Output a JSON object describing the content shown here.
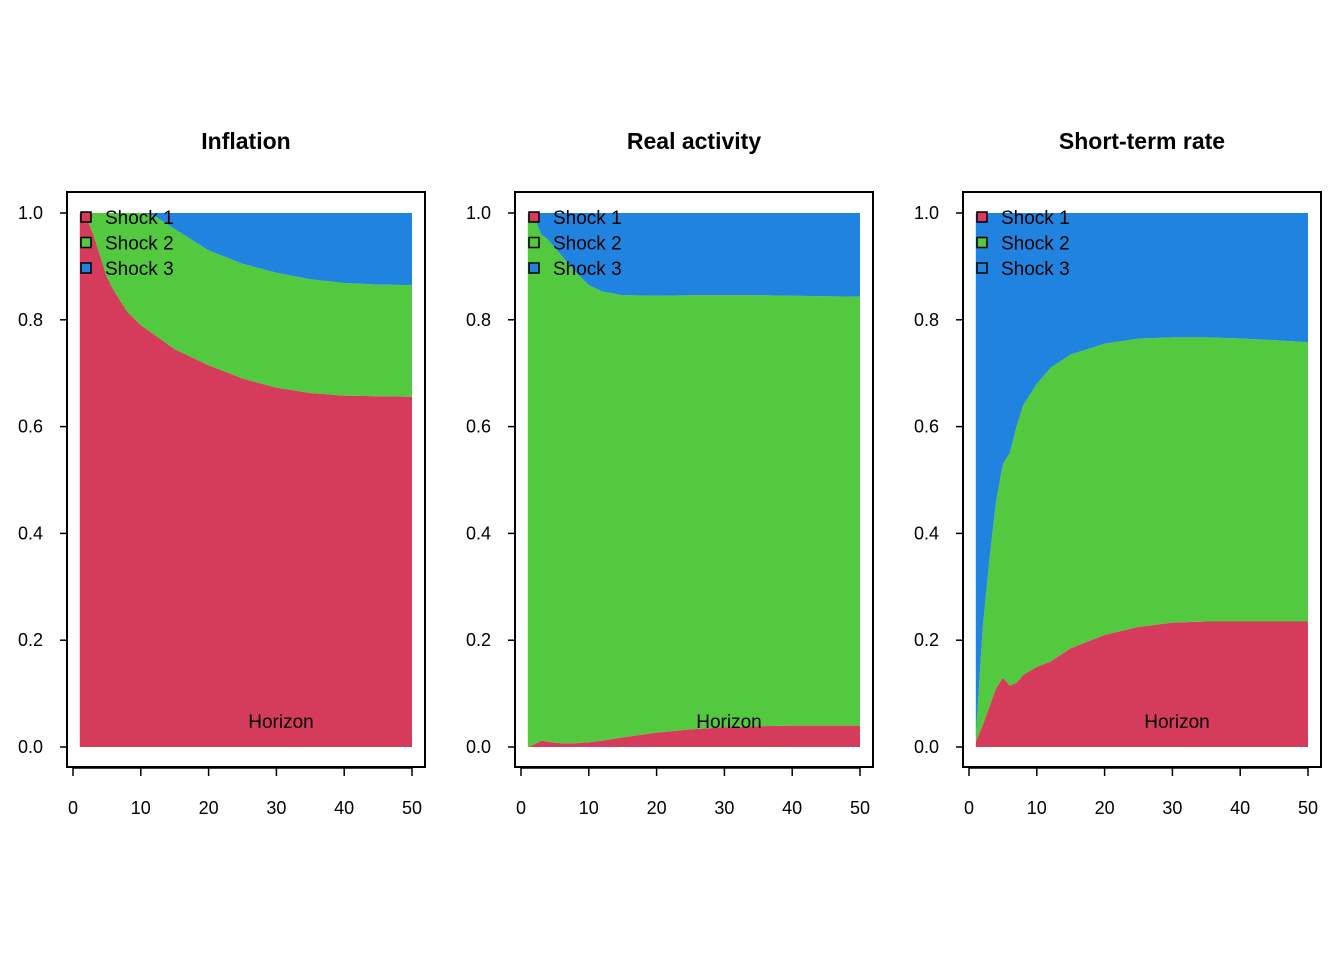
{
  "colors": {
    "Shock 1": "#D53B5A",
    "Shock 2": "#53C93F",
    "Shock 3": "#2183E0"
  },
  "chart_data": [
    {
      "type": "area",
      "stacked": true,
      "title": "Inflation",
      "annotation": "Horizon",
      "legend_position": "top-left",
      "xlim": [
        1,
        50
      ],
      "ylim": [
        0,
        1
      ],
      "xticks": [
        "0",
        "10",
        "20",
        "30",
        "40",
        "50"
      ],
      "yticks": [
        "0.0",
        "0.2",
        "0.4",
        "0.6",
        "0.8",
        "1.0"
      ],
      "x": [
        1,
        2,
        3,
        4,
        5,
        6,
        7,
        8,
        10,
        12,
        15,
        20,
        25,
        30,
        35,
        40,
        45,
        50
      ],
      "series": [
        {
          "name": "Shock 1",
          "values": [
            1.0,
            0.99,
            0.96,
            0.92,
            0.88,
            0.855,
            0.835,
            0.815,
            0.79,
            0.772,
            0.745,
            0.715,
            0.69,
            0.673,
            0.663,
            0.658,
            0.657,
            0.656
          ]
        },
        {
          "name": "Shock 2",
          "values": [
            0,
            0.01,
            0.04,
            0.08,
            0.12,
            0.145,
            0.165,
            0.185,
            0.21,
            0.223,
            0.225,
            0.215,
            0.215,
            0.215,
            0.213,
            0.211,
            0.209,
            0.209
          ]
        },
        {
          "name": "Shock 3",
          "values": [
            0,
            0,
            0,
            0,
            0,
            0,
            0,
            0,
            0,
            0.005,
            0.03,
            0.07,
            0.095,
            0.112,
            0.124,
            0.131,
            0.134,
            0.135
          ]
        }
      ]
    },
    {
      "type": "area",
      "stacked": true,
      "title": "Real activity",
      "annotation": "Horizon",
      "legend_position": "top-left",
      "xlim": [
        1,
        50
      ],
      "ylim": [
        0,
        1
      ],
      "xticks": [
        "0",
        "10",
        "20",
        "30",
        "40",
        "50"
      ],
      "yticks": [
        "0.0",
        "0.2",
        "0.4",
        "0.6",
        "0.8",
        "1.0"
      ],
      "x": [
        1,
        2,
        3,
        4,
        5,
        6,
        7,
        8,
        10,
        12,
        15,
        20,
        25,
        30,
        35,
        40,
        45,
        50
      ],
      "series": [
        {
          "name": "Shock 1",
          "values": [
            0,
            0.005,
            0.012,
            0.01,
            0.008,
            0.007,
            0.007,
            0.007,
            0.009,
            0.012,
            0.018,
            0.027,
            0.033,
            0.037,
            0.039,
            0.04,
            0.04,
            0.04
          ]
        },
        {
          "name": "Shock 2",
          "values": [
            1.0,
            0.985,
            0.948,
            0.94,
            0.927,
            0.913,
            0.898,
            0.883,
            0.856,
            0.841,
            0.828,
            0.818,
            0.813,
            0.809,
            0.807,
            0.805,
            0.804,
            0.803
          ]
        },
        {
          "name": "Shock 3",
          "values": [
            0,
            0.01,
            0.04,
            0.05,
            0.065,
            0.08,
            0.095,
            0.11,
            0.135,
            0.147,
            0.154,
            0.155,
            0.154,
            0.154,
            0.154,
            0.155,
            0.156,
            0.157
          ]
        }
      ]
    },
    {
      "type": "area",
      "stacked": true,
      "title": "Short-term rate",
      "annotation": "Horizon",
      "legend_position": "top-left",
      "xlim": [
        1,
        50
      ],
      "ylim": [
        0,
        1
      ],
      "xticks": [
        "0",
        "10",
        "20",
        "30",
        "40",
        "50"
      ],
      "yticks": [
        "0.0",
        "0.2",
        "0.4",
        "0.6",
        "0.8",
        "1.0"
      ],
      "x": [
        1,
        2,
        3,
        4,
        5,
        6,
        7,
        8,
        10,
        12,
        15,
        20,
        25,
        30,
        35,
        40,
        45,
        50
      ],
      "series": [
        {
          "name": "Shock 1",
          "values": [
            0.01,
            0.04,
            0.075,
            0.11,
            0.13,
            0.115,
            0.12,
            0.135,
            0.15,
            0.16,
            0.185,
            0.21,
            0.225,
            0.233,
            0.235,
            0.235,
            0.235,
            0.235
          ]
        },
        {
          "name": "Shock 2",
          "values": [
            0.01,
            0.18,
            0.275,
            0.35,
            0.4,
            0.435,
            0.48,
            0.505,
            0.53,
            0.55,
            0.55,
            0.545,
            0.54,
            0.534,
            0.532,
            0.53,
            0.527,
            0.523
          ]
        },
        {
          "name": "Shock 3",
          "values": [
            0.98,
            0.78,
            0.65,
            0.54,
            0.47,
            0.45,
            0.4,
            0.36,
            0.32,
            0.29,
            0.265,
            0.245,
            0.235,
            0.233,
            0.233,
            0.235,
            0.238,
            0.242
          ]
        }
      ]
    }
  ]
}
